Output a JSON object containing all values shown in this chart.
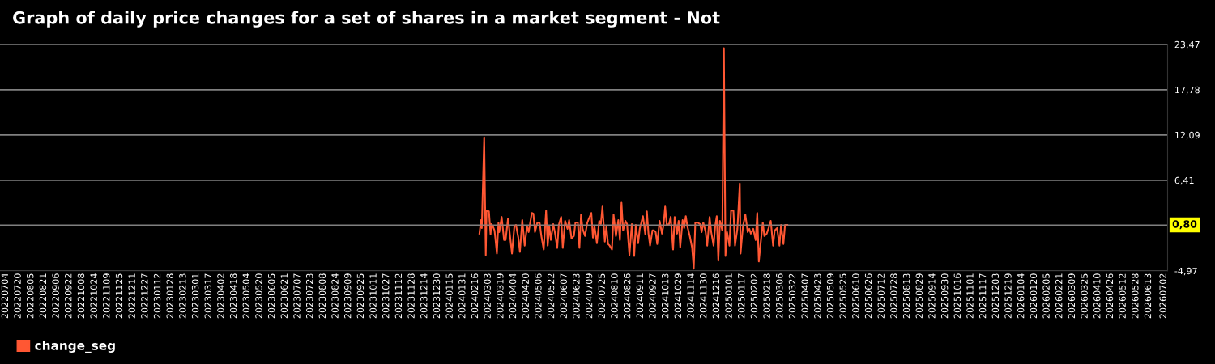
{
  "chart_data": {
    "type": "line",
    "title": "Graph of daily price changes for a set of shares in a market segment - Not",
    "x": [
      "2024-02-21",
      "2024-02-23",
      "2024-02-24",
      "2024-02-27",
      "2024-02-29",
      "2024-03-01",
      "2024-03-04",
      "2024-03-06",
      "2024-03-07",
      "2024-03-09",
      "2024-03-11",
      "2024-03-12",
      "2024-03-14",
      "2024-03-16",
      "2024-03-17",
      "2024-03-20",
      "2024-03-23",
      "2024-03-25",
      "2024-03-28",
      "2024-03-30",
      "2024-04-02",
      "2024-04-05",
      "2024-04-07",
      "2024-04-10",
      "2024-04-12",
      "2024-04-15",
      "2024-04-18",
      "2024-04-21",
      "2024-04-23",
      "2024-04-27",
      "2024-04-29",
      "2024-05-01",
      "2024-05-04",
      "2024-05-07",
      "2024-05-09",
      "2024-05-12",
      "2024-05-15",
      "2024-05-17",
      "2024-05-19",
      "2024-05-21",
      "2024-05-24",
      "2024-05-26",
      "2024-05-29",
      "2024-05-31",
      "2024-06-03",
      "2024-06-05",
      "2024-06-08",
      "2024-06-11",
      "2024-06-13",
      "2024-06-16",
      "2024-06-19",
      "2024-06-21",
      "2024-06-24",
      "2024-06-26",
      "2024-06-28",
      "2024-06-30",
      "2024-07-03",
      "2024-07-06",
      "2024-07-08",
      "2024-07-11",
      "2024-07-13",
      "2024-07-15",
      "2024-07-18",
      "2024-07-21",
      "2024-07-23",
      "2024-07-25",
      "2024-07-28",
      "2024-07-30",
      "2024-08-01",
      "2024-08-03",
      "2024-08-06",
      "2024-08-08",
      "2024-08-11",
      "2024-08-14",
      "2024-08-16",
      "2024-08-18",
      "2024-08-20",
      "2024-08-23",
      "2024-08-25",
      "2024-08-28",
      "2024-08-31",
      "2024-09-03",
      "2024-09-05",
      "2024-09-08",
      "2024-09-10",
      "2024-09-12",
      "2024-09-14",
      "2024-09-17",
      "2024-09-19",
      "2024-09-21",
      "2024-09-23",
      "2024-09-26",
      "2024-09-28",
      "2024-09-30",
      "2024-10-02",
      "2024-10-05",
      "2024-10-08",
      "2024-10-10",
      "2024-10-12",
      "2024-10-14",
      "2024-10-17",
      "2024-10-19",
      "2024-10-22",
      "2024-10-24",
      "2024-10-27",
      "2024-10-29",
      "2024-10-31",
      "2024-11-03",
      "2024-11-05",
      "2024-11-07",
      "2024-11-09",
      "2024-11-12",
      "2024-11-15",
      "2024-11-17",
      "2024-11-19",
      "2024-11-22",
      "2024-11-25",
      "2024-11-27",
      "2024-11-29",
      "2024-12-02",
      "2024-12-04",
      "2024-12-07",
      "2024-12-09",
      "2024-12-12",
      "2024-12-14",
      "2024-12-16",
      "2024-12-18",
      "2024-12-20",
      "2024-12-23",
      "2024-12-25",
      "2024-12-27",
      "2024-12-29",
      "2025-01-01",
      "2025-01-03",
      "2025-01-06",
      "2025-01-08",
      "2025-01-11",
      "2025-01-14",
      "2025-01-15",
      "2025-01-18",
      "2025-01-21",
      "2025-01-24",
      "2025-01-26",
      "2025-01-28",
      "2025-01-31",
      "2025-02-03",
      "2025-02-05",
      "2025-02-07",
      "2025-02-09",
      "2025-02-12",
      "2025-02-14",
      "2025-02-17",
      "2025-02-20",
      "2025-02-22",
      "2025-02-25",
      "2025-02-27",
      "2025-03-02",
      "2025-03-05",
      "2025-03-07",
      "2025-03-10",
      "2025-03-12",
      "2025-03-15"
    ],
    "series": [
      {
        "name": "change_seg",
        "color": "#ff5733",
        "values": [
          -0.3,
          1.4,
          0.4,
          11.8,
          -3.0,
          2.6,
          2.5,
          -0.4,
          0.9,
          0.6,
          0.1,
          -0.8,
          -2.8,
          1.1,
          -0.1,
          1.8,
          -1.1,
          -1.1,
          1.6,
          -0.1,
          -2.8,
          0.6,
          0.8,
          -0.8,
          -2.6,
          1.4,
          -1.8,
          0.6,
          -0.1,
          2.3,
          2.2,
          -0.1,
          1.1,
          1.0,
          -0.6,
          -2.3,
          2.6,
          -1.8,
          0.6,
          -1.1,
          0.9,
          -0.1,
          -2.1,
          0.8,
          1.8,
          -2.1,
          1.3,
          0.3,
          1.4,
          -0.9,
          -0.6,
          1.1,
          1.1,
          -2.1,
          2.1,
          0.3,
          -0.6,
          1.1,
          1.6,
          2.3,
          -0.8,
          0.6,
          -1.5,
          1.3,
          0.9,
          3.1,
          -1.3,
          0.6,
          -1.6,
          -1.8,
          -2.3,
          2.1,
          -0.6,
          1.4,
          -1.1,
          3.6,
          0.1,
          1.3,
          0.9,
          -3.0,
          0.9,
          -3.1,
          0.8,
          -1.5,
          0.3,
          1.1,
          1.9,
          -0.4,
          2.5,
          -0.3,
          -1.8,
          0.1,
          0.1,
          -0.1,
          -1.6,
          1.3,
          -0.3,
          0.8,
          3.1,
          0.8,
          0.9,
          1.8,
          -2.3,
          1.8,
          -0.3,
          1.3,
          -2.0,
          1.4,
          0.4,
          1.9,
          0.6,
          -0.6,
          -2.1,
          -4.7,
          1.1,
          1.1,
          0.9,
          -0.1,
          1.1,
          -0.1,
          -1.8,
          1.8,
          -0.1,
          -1.8,
          0.6,
          1.9,
          -3.7,
          1.3,
          0.1,
          23.0,
          -3.1,
          -0.1,
          -1.8,
          2.6,
          2.6,
          -1.8,
          0.3,
          6.0,
          -2.8,
          0.6,
          2.1,
          -0.1,
          0.3,
          -0.3,
          0.3,
          -1.1,
          2.3,
          -3.8,
          -1.8,
          1.1,
          -0.6,
          -0.3,
          0.6,
          1.3,
          -1.8,
          0.1,
          0.4,
          -1.8,
          0.8,
          -1.6,
          0.8,
          0.8
        ]
      }
    ],
    "xlim": [
      "2022-06-27",
      "2026-07-07"
    ],
    "xticks": [
      {
        "value": "2022-07-04",
        "label": "20220704"
      },
      {
        "value": "2022-07-20",
        "label": "20220720"
      },
      {
        "value": "2022-08-05",
        "label": "20220805"
      },
      {
        "value": "2022-08-21",
        "label": "20220821"
      },
      {
        "value": "2022-09-06",
        "label": "20220906"
      },
      {
        "value": "2022-09-22",
        "label": "20220922"
      },
      {
        "value": "2022-10-08",
        "label": "20221008"
      },
      {
        "value": "2022-10-24",
        "label": "20221024"
      },
      {
        "value": "2022-11-09",
        "label": "20221109"
      },
      {
        "value": "2022-11-25",
        "label": "20221125"
      },
      {
        "value": "2022-12-11",
        "label": "20221211"
      },
      {
        "value": "2022-12-27",
        "label": "20221227"
      },
      {
        "value": "2023-01-12",
        "label": "20230112"
      },
      {
        "value": "2023-01-28",
        "label": "20230128"
      },
      {
        "value": "2023-02-13",
        "label": "20230213"
      },
      {
        "value": "2023-03-01",
        "label": "20230301"
      },
      {
        "value": "2023-03-17",
        "label": "20230317"
      },
      {
        "value": "2023-04-02",
        "label": "20230402"
      },
      {
        "value": "2023-04-18",
        "label": "20230418"
      },
      {
        "value": "2023-05-04",
        "label": "20230504"
      },
      {
        "value": "2023-05-20",
        "label": "20230520"
      },
      {
        "value": "2023-06-05",
        "label": "20230605"
      },
      {
        "value": "2023-06-21",
        "label": "20230621"
      },
      {
        "value": "2023-07-07",
        "label": "20230707"
      },
      {
        "value": "2023-07-23",
        "label": "20230723"
      },
      {
        "value": "2023-08-08",
        "label": "20230808"
      },
      {
        "value": "2023-08-24",
        "label": "20230824"
      },
      {
        "value": "2023-09-09",
        "label": "20230909"
      },
      {
        "value": "2023-09-25",
        "label": "20230925"
      },
      {
        "value": "2023-10-11",
        "label": "20231011"
      },
      {
        "value": "2023-10-27",
        "label": "20231027"
      },
      {
        "value": "2023-11-12",
        "label": "20231112"
      },
      {
        "value": "2023-11-28",
        "label": "20231128"
      },
      {
        "value": "2023-12-14",
        "label": "20231214"
      },
      {
        "value": "2023-12-30",
        "label": "20231230"
      },
      {
        "value": "2024-01-15",
        "label": "20240115"
      },
      {
        "value": "2024-01-31",
        "label": "20240131"
      },
      {
        "value": "2024-02-16",
        "label": "20240216"
      },
      {
        "value": "2024-03-03",
        "label": "20240303"
      },
      {
        "value": "2024-03-19",
        "label": "20240319"
      },
      {
        "value": "2024-04-04",
        "label": "20240404"
      },
      {
        "value": "2024-04-20",
        "label": "20240420"
      },
      {
        "value": "2024-05-06",
        "label": "20240506"
      },
      {
        "value": "2024-05-22",
        "label": "20240522"
      },
      {
        "value": "2024-06-07",
        "label": "20240607"
      },
      {
        "value": "2024-06-23",
        "label": "20240623"
      },
      {
        "value": "2024-07-09",
        "label": "20240709"
      },
      {
        "value": "2024-07-25",
        "label": "20240725"
      },
      {
        "value": "2024-08-10",
        "label": "20240810"
      },
      {
        "value": "2024-08-26",
        "label": "20240826"
      },
      {
        "value": "2024-09-11",
        "label": "20240911"
      },
      {
        "value": "2024-09-27",
        "label": "20240927"
      },
      {
        "value": "2024-10-13",
        "label": "20241013"
      },
      {
        "value": "2024-10-29",
        "label": "20241029"
      },
      {
        "value": "2024-11-14",
        "label": "20241114"
      },
      {
        "value": "2024-11-30",
        "label": "20241130"
      },
      {
        "value": "2024-12-16",
        "label": "20241216"
      },
      {
        "value": "2025-01-01",
        "label": "20250101"
      },
      {
        "value": "2025-01-17",
        "label": "20250117"
      },
      {
        "value": "2025-02-02",
        "label": "20250202"
      },
      {
        "value": "2025-02-18",
        "label": "20250218"
      },
      {
        "value": "2025-03-06",
        "label": "20250306"
      },
      {
        "value": "2025-03-22",
        "label": "20250322"
      },
      {
        "value": "2025-04-07",
        "label": "20250407"
      },
      {
        "value": "2025-04-23",
        "label": "20250423"
      },
      {
        "value": "2025-05-09",
        "label": "20250509"
      },
      {
        "value": "2025-05-25",
        "label": "20250525"
      },
      {
        "value": "2025-06-10",
        "label": "20250610"
      },
      {
        "value": "2025-06-26",
        "label": "20250626"
      },
      {
        "value": "2025-07-12",
        "label": "20250712"
      },
      {
        "value": "2025-07-28",
        "label": "20250728"
      },
      {
        "value": "2025-08-13",
        "label": "20250813"
      },
      {
        "value": "2025-08-29",
        "label": "20250829"
      },
      {
        "value": "2025-09-14",
        "label": "20250914"
      },
      {
        "value": "2025-09-30",
        "label": "20250930"
      },
      {
        "value": "2025-10-16",
        "label": "20251016"
      },
      {
        "value": "2025-11-01",
        "label": "20251101"
      },
      {
        "value": "2025-11-17",
        "label": "20251117"
      },
      {
        "value": "2025-12-03",
        "label": "20251203"
      },
      {
        "value": "2025-12-19",
        "label": "20251219"
      },
      {
        "value": "2026-01-04",
        "label": "20260104"
      },
      {
        "value": "2026-01-20",
        "label": "20260120"
      },
      {
        "value": "2026-02-05",
        "label": "20260205"
      },
      {
        "value": "2026-02-21",
        "label": "20260221"
      },
      {
        "value": "2026-03-09",
        "label": "20260309"
      },
      {
        "value": "2026-03-25",
        "label": "20260325"
      },
      {
        "value": "2026-04-10",
        "label": "20260410"
      },
      {
        "value": "2026-04-26",
        "label": "20260426"
      },
      {
        "value": "2026-05-12",
        "label": "20260512"
      },
      {
        "value": "2026-05-28",
        "label": "20260528"
      },
      {
        "value": "2026-06-13",
        "label": "20260613"
      },
      {
        "value": "2026-07-02",
        "label": "20260702"
      }
    ],
    "ylim": [
      -4.97,
      23.47
    ],
    "yticks": [
      {
        "value": -4.97,
        "label": "-4,97"
      },
      {
        "value": 0.72,
        "label": null
      },
      {
        "value": 6.41,
        "label": "6,41"
      },
      {
        "value": 12.09,
        "label": "12,09"
      },
      {
        "value": 17.78,
        "label": "17,78"
      },
      {
        "value": 23.47,
        "label": "23,47"
      }
    ],
    "ref_lines": [
      {
        "axis": "y",
        "value": 0.8,
        "label": "0,80"
      }
    ],
    "grid": "y",
    "legend": "bottom left",
    "marker": "none",
    "line_style": "solid"
  }
}
